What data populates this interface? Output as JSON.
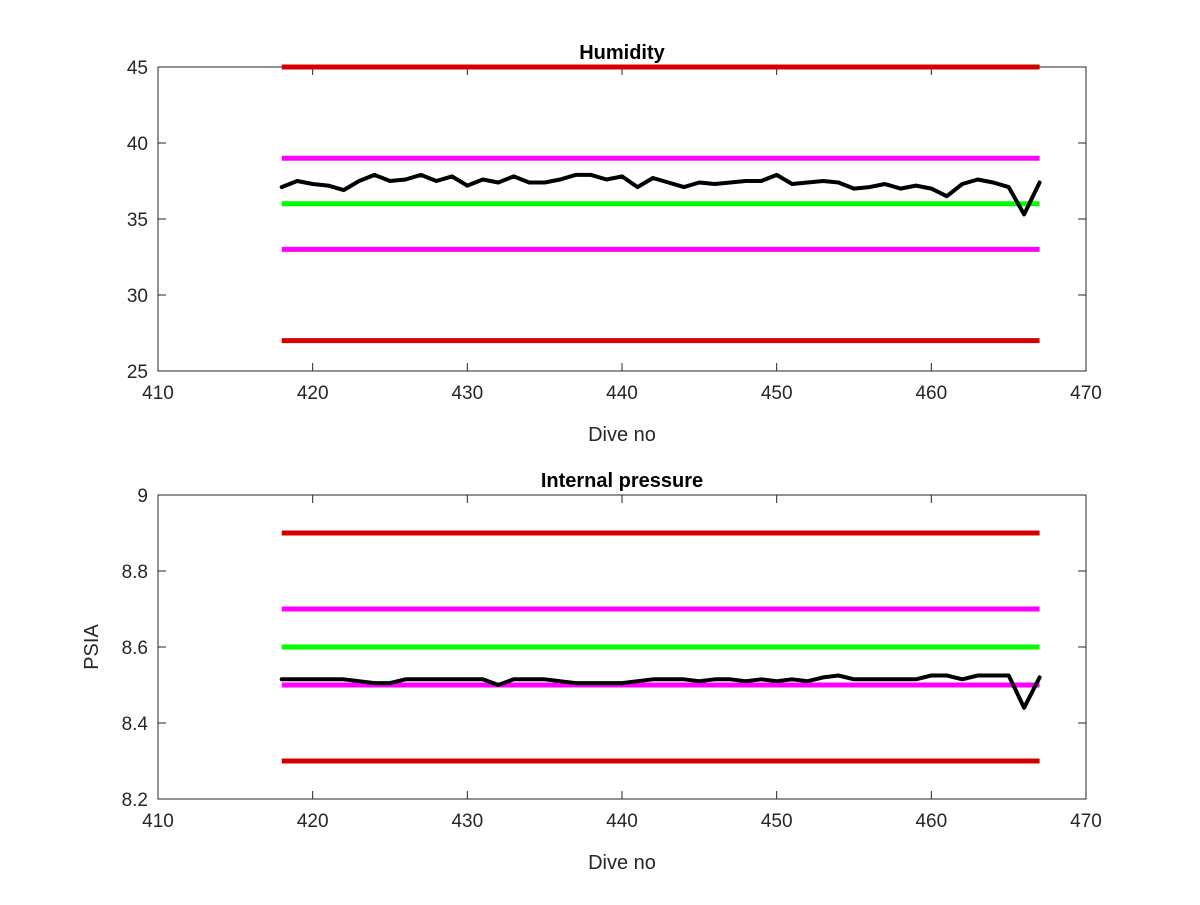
{
  "chart_data": [
    {
      "type": "line",
      "title": "Humidity",
      "xlabel": "Dive no",
      "ylabel": "",
      "xlim": [
        410,
        470
      ],
      "ylim": [
        25,
        45
      ],
      "xticks": [
        410,
        420,
        430,
        440,
        450,
        460,
        470
      ],
      "yticks": [
        25,
        30,
        35,
        40,
        45
      ],
      "grid": false,
      "reference_lines": [
        {
          "y": 45,
          "x_range": [
            418,
            467
          ],
          "color": "#d40000"
        },
        {
          "y": 39,
          "x_range": [
            418,
            467
          ],
          "color": "#ff00ff"
        },
        {
          "y": 36,
          "x_range": [
            418,
            467
          ],
          "color": "#00ff00"
        },
        {
          "y": 33,
          "x_range": [
            418,
            467
          ],
          "color": "#ff00ff"
        },
        {
          "y": 27,
          "x_range": [
            418,
            467
          ],
          "color": "#d40000"
        }
      ],
      "series": [
        {
          "color": "#000000",
          "x": [
            418,
            419,
            420,
            421,
            422,
            423,
            424,
            425,
            426,
            427,
            428,
            429,
            430,
            431,
            432,
            433,
            434,
            435,
            436,
            437,
            438,
            439,
            440,
            441,
            442,
            443,
            444,
            445,
            446,
            447,
            448,
            449,
            450,
            451,
            452,
            453,
            454,
            455,
            456,
            457,
            458,
            459,
            460,
            461,
            462,
            463,
            464,
            465,
            466,
            467
          ],
          "values": [
            37.1,
            37.5,
            37.3,
            37.2,
            36.9,
            37.5,
            37.9,
            37.5,
            37.6,
            37.9,
            37.5,
            37.8,
            37.2,
            37.6,
            37.4,
            37.8,
            37.4,
            37.4,
            37.6,
            37.9,
            37.9,
            37.6,
            37.8,
            37.1,
            37.7,
            37.4,
            37.1,
            37.4,
            37.3,
            37.4,
            37.5,
            37.5,
            37.9,
            37.3,
            37.4,
            37.5,
            37.4,
            37.0,
            37.1,
            37.3,
            37.0,
            37.2,
            37.0,
            36.5,
            37.3,
            37.6,
            37.4,
            37.1,
            35.3,
            37.4
          ]
        }
      ]
    },
    {
      "type": "line",
      "title": "Internal pressure",
      "xlabel": "Dive no",
      "ylabel": "PSIA",
      "xlim": [
        410,
        470
      ],
      "ylim": [
        8.2,
        9
      ],
      "xticks": [
        410,
        420,
        430,
        440,
        450,
        460,
        470
      ],
      "yticks": [
        8.2,
        8.4,
        8.6,
        8.8,
        9
      ],
      "grid": false,
      "reference_lines": [
        {
          "y": 8.9,
          "x_range": [
            418,
            467
          ],
          "color": "#d40000"
        },
        {
          "y": 8.7,
          "x_range": [
            418,
            467
          ],
          "color": "#ff00ff"
        },
        {
          "y": 8.6,
          "x_range": [
            418,
            467
          ],
          "color": "#00ff00"
        },
        {
          "y": 8.5,
          "x_range": [
            418,
            467
          ],
          "color": "#ff00ff"
        },
        {
          "y": 8.3,
          "x_range": [
            418,
            467
          ],
          "color": "#d40000"
        }
      ],
      "series": [
        {
          "color": "#000000",
          "x": [
            418,
            419,
            420,
            421,
            422,
            423,
            424,
            425,
            426,
            427,
            428,
            429,
            430,
            431,
            432,
            433,
            434,
            435,
            436,
            437,
            438,
            439,
            440,
            441,
            442,
            443,
            444,
            445,
            446,
            447,
            448,
            449,
            450,
            451,
            452,
            453,
            454,
            455,
            456,
            457,
            458,
            459,
            460,
            461,
            462,
            463,
            464,
            465,
            466,
            467
          ],
          "values": [
            8.515,
            8.515,
            8.515,
            8.515,
            8.515,
            8.51,
            8.505,
            8.505,
            8.515,
            8.515,
            8.515,
            8.515,
            8.515,
            8.515,
            8.5,
            8.515,
            8.515,
            8.515,
            8.51,
            8.505,
            8.505,
            8.505,
            8.505,
            8.51,
            8.515,
            8.515,
            8.515,
            8.51,
            8.515,
            8.515,
            8.51,
            8.515,
            8.51,
            8.515,
            8.51,
            8.52,
            8.525,
            8.515,
            8.515,
            8.515,
            8.515,
            8.515,
            8.525,
            8.525,
            8.515,
            8.525,
            8.525,
            8.525,
            8.44,
            8.52
          ]
        }
      ]
    }
  ]
}
